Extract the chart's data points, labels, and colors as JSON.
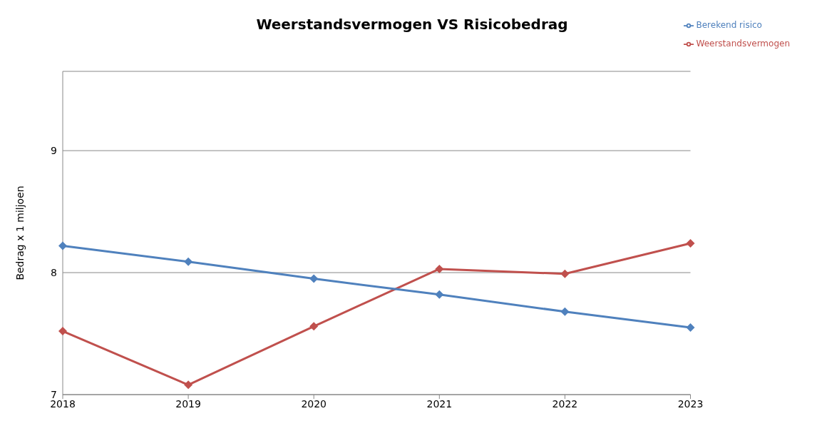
{
  "chart_data": {
    "type": "line",
    "title": "Weerstandsvermogen VS Risicobedrag",
    "ylabel": "Bedrag x 1 miljoen",
    "categories": [
      "2018",
      "2019",
      "2020",
      "2021",
      "2022",
      "2023"
    ],
    "series": [
      {
        "name": "Weerstandsvermogen",
        "color": "#c0504d",
        "values": [
          7.52,
          7.08,
          7.56,
          8.03,
          7.99,
          8.24
        ]
      },
      {
        "name": "Berekend risico",
        "color": "#4f81bd",
        "values": [
          8.22,
          8.09,
          7.95,
          7.82,
          7.68,
          7.55
        ]
      }
    ],
    "ylim": [
      7,
      9.65
    ],
    "yticks": [
      7,
      8,
      9
    ],
    "grid": "y",
    "legend": "top right",
    "marker": "diamond",
    "line_style": "solid"
  }
}
